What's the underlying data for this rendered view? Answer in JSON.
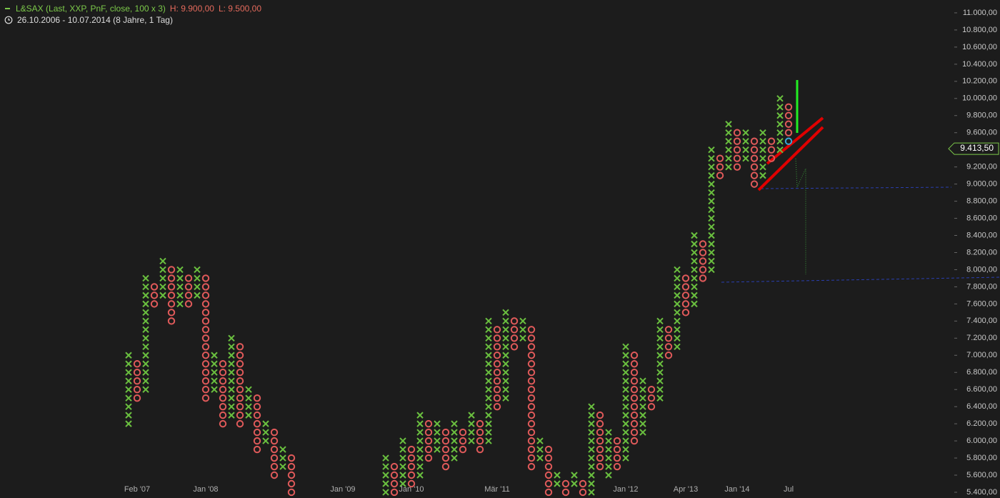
{
  "chart_data": {
    "type": "pnf",
    "title": "L&SAX (Last, XXP, PnF, close, 100 x 3)",
    "high_label": "H: 9.900,00",
    "low_label": "L: 9.500,00",
    "subtitle": "26.10.2006 - 10.07.2014 (8 Jahre, 1 Tag)",
    "box_size": 100,
    "x_color": "#6abf3f",
    "o_color": "#e05a5a",
    "current_color": "#38a8d8",
    "ylim": [
      5333,
      11150
    ],
    "yticks": [
      {
        "value": 5400,
        "label": "5.400,00"
      },
      {
        "value": 5600,
        "label": "5.600,00"
      },
      {
        "value": 5800,
        "label": "5.800,00"
      },
      {
        "value": 6000,
        "label": "6.000,00"
      },
      {
        "value": 6200,
        "label": "6.200,00"
      },
      {
        "value": 6400,
        "label": "6.400,00"
      },
      {
        "value": 6600,
        "label": "6.600,00"
      },
      {
        "value": 6800,
        "label": "6.800,00"
      },
      {
        "value": 7000,
        "label": "7.000,00"
      },
      {
        "value": 7200,
        "label": "7.200,00"
      },
      {
        "value": 7400,
        "label": "7.400,00"
      },
      {
        "value": 7600,
        "label": "7.600,00"
      },
      {
        "value": 7800,
        "label": "7.800,00"
      },
      {
        "value": 8000,
        "label": "8.000,00"
      },
      {
        "value": 8200,
        "label": "8.200,00"
      },
      {
        "value": 8400,
        "label": "8.400,00"
      },
      {
        "value": 8600,
        "label": "8.600,00"
      },
      {
        "value": 8800,
        "label": "8.800,00"
      },
      {
        "value": 9000,
        "label": "9.000,00"
      },
      {
        "value": 9200,
        "label": "9.200,00"
      },
      {
        "value": 9400,
        "label": "9.400,00"
      },
      {
        "value": 9600,
        "label": "9.600,00"
      },
      {
        "value": 9800,
        "label": "9.800,00"
      },
      {
        "value": 10000,
        "label": "10.000,00"
      },
      {
        "value": 10200,
        "label": "10.200,00"
      },
      {
        "value": 10400,
        "label": "10.400,00"
      },
      {
        "value": 10600,
        "label": "10.600,00"
      },
      {
        "value": 10800,
        "label": "10.800,00"
      },
      {
        "value": 11000,
        "label": "11.000,00"
      }
    ],
    "last_price": {
      "value": 9413.5,
      "label": "9.413,50"
    },
    "categories": [
      null,
      "Feb '07",
      null,
      null,
      null,
      null,
      null,
      null,
      null,
      "Jan '08",
      null,
      null,
      null,
      null,
      null,
      null,
      null,
      null,
      null,
      null,
      null,
      null,
      null,
      null,
      null,
      "Jan '09",
      null,
      null,
      null,
      null,
      null,
      null,
      null,
      "Jan '10",
      null,
      null,
      null,
      null,
      null,
      null,
      null,
      null,
      null,
      "Mär '11",
      null,
      null,
      null,
      null,
      null,
      null,
      null,
      null,
      null,
      null,
      null,
      null,
      null,
      null,
      "Jan '12",
      null,
      null,
      null,
      null,
      null,
      null,
      "Apr '13",
      null,
      null,
      null,
      null,
      null,
      "Jan '14",
      null,
      null,
      null,
      null,
      null,
      "Jul"
    ],
    "columns": [
      {
        "type": "X",
        "low": 6200,
        "high": 7000
      },
      {
        "type": "O",
        "low": 6500,
        "high": 6900
      },
      {
        "type": "X",
        "low": 6600,
        "high": 7900
      },
      {
        "type": "O",
        "low": 7600,
        "high": 7800
      },
      {
        "type": "X",
        "low": 7700,
        "high": 8100
      },
      {
        "type": "O",
        "low": 7400,
        "high": 8000
      },
      {
        "type": "X",
        "low": 7600,
        "high": 8000
      },
      {
        "type": "O",
        "low": 7600,
        "high": 7900
      },
      {
        "type": "X",
        "low": 7700,
        "high": 8000
      },
      {
        "type": "O",
        "low": 6500,
        "high": 7900
      },
      {
        "type": "X",
        "low": 6600,
        "high": 7000
      },
      {
        "type": "O",
        "low": 6200,
        "high": 6900
      },
      {
        "type": "X",
        "low": 6300,
        "high": 7200
      },
      {
        "type": "O",
        "low": 6200,
        "high": 7100
      },
      {
        "type": "X",
        "low": 6300,
        "high": 6600
      },
      {
        "type": "O",
        "low": 5900,
        "high": 6500
      },
      {
        "type": "X",
        "low": 6000,
        "high": 6200
      },
      {
        "type": "O",
        "low": 5600,
        "high": 6100
      },
      {
        "type": "X",
        "low": 5700,
        "high": 5900
      },
      {
        "type": "O",
        "low": 5400,
        "high": 5800
      },
      null,
      null,
      null,
      null,
      null,
      null,
      null,
      null,
      null,
      null,
      {
        "type": "X",
        "low": 5400,
        "high": 5800
      },
      {
        "type": "O",
        "low": 5400,
        "high": 5700
      },
      {
        "type": "X",
        "low": 5500,
        "high": 6000
      },
      {
        "type": "O",
        "low": 5500,
        "high": 5900
      },
      {
        "type": "X",
        "low": 5600,
        "high": 6300
      },
      {
        "type": "O",
        "low": 5800,
        "high": 6200
      },
      {
        "type": "X",
        "low": 5900,
        "high": 6200
      },
      {
        "type": "O",
        "low": 5700,
        "high": 6100
      },
      {
        "type": "X",
        "low": 5800,
        "high": 6200
      },
      {
        "type": "O",
        "low": 5900,
        "high": 6100
      },
      {
        "type": "X",
        "low": 6000,
        "high": 6300
      },
      {
        "type": "O",
        "low": 5900,
        "high": 6200
      },
      {
        "type": "X",
        "low": 6000,
        "high": 7400
      },
      {
        "type": "O",
        "low": 6400,
        "high": 7300
      },
      {
        "type": "X",
        "low": 6500,
        "high": 7500
      },
      {
        "type": "O",
        "low": 7100,
        "high": 7400
      },
      {
        "type": "X",
        "low": 7200,
        "high": 7400
      },
      {
        "type": "O",
        "low": 5700,
        "high": 7300
      },
      {
        "type": "X",
        "low": 5800,
        "high": 6000
      },
      {
        "type": "O",
        "low": 5400,
        "high": 5900
      },
      {
        "type": "X",
        "low": 5500,
        "high": 5600
      },
      {
        "type": "O",
        "low": 5400,
        "high": 5500
      },
      {
        "type": "X",
        "low": 5500,
        "high": 5600
      },
      {
        "type": "O",
        "low": 5400,
        "high": 5500
      },
      {
        "type": "X",
        "low": 5400,
        "high": 6400
      },
      {
        "type": "O",
        "low": 5700,
        "high": 6300
      },
      {
        "type": "X",
        "low": 5600,
        "high": 6100
      },
      {
        "type": "O",
        "low": 5700,
        "high": 6000
      },
      {
        "type": "X",
        "low": 5800,
        "high": 7100
      },
      {
        "type": "O",
        "low": 6000,
        "high": 7000
      },
      {
        "type": "X",
        "low": 6100,
        "high": 6700
      },
      {
        "type": "O",
        "low": 6400,
        "high": 6600
      },
      {
        "type": "X",
        "low": 6500,
        "high": 7400
      },
      {
        "type": "O",
        "low": 7000,
        "high": 7300
      },
      {
        "type": "X",
        "low": 7100,
        "high": 8000
      },
      {
        "type": "O",
        "low": 7500,
        "high": 7900
      },
      {
        "type": "X",
        "low": 7600,
        "high": 8400
      },
      {
        "type": "O",
        "low": 7900,
        "high": 8300
      },
      {
        "type": "X",
        "low": 8000,
        "high": 9400
      },
      {
        "type": "O",
        "low": 9100,
        "high": 9300
      },
      {
        "type": "X",
        "low": 9200,
        "high": 9700
      },
      {
        "type": "O",
        "low": 9200,
        "high": 9600
      },
      {
        "type": "X",
        "low": 9300,
        "high": 9600
      },
      {
        "type": "O",
        "low": 9000,
        "high": 9500
      },
      {
        "type": "X",
        "low": 9100,
        "high": 9600
      },
      {
        "type": "O",
        "low": 9300,
        "high": 9500
      },
      {
        "type": "X",
        "low": 9400,
        "high": 10000
      },
      {
        "type": "O",
        "low": 9500,
        "high": 9900
      }
    ]
  }
}
